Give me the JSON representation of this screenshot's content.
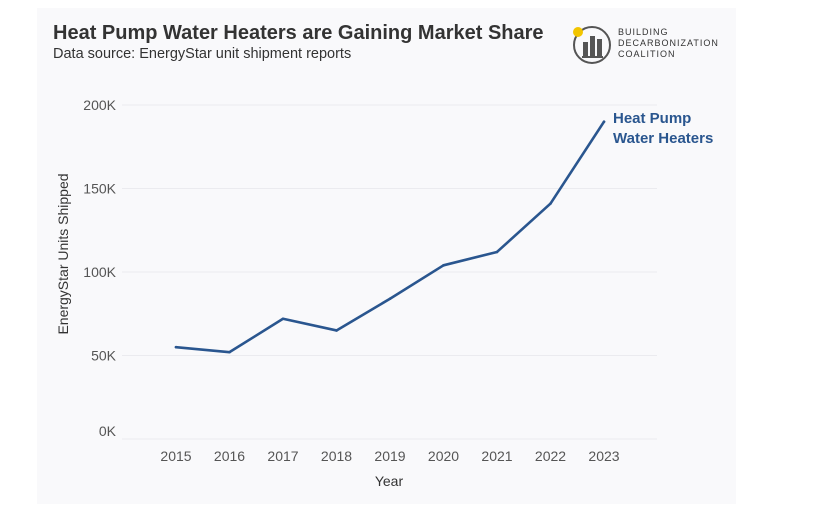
{
  "header": {
    "title": "Heat Pump Water Heaters are Gaining Market Share",
    "subtitle": "Data source: EnergyStar unit shipment reports"
  },
  "logo": {
    "lines": [
      "BUILDING",
      "DECARBONIZATION",
      "COALITION"
    ],
    "icon": "building-coalition-logo-icon",
    "accent_color": "#f2c500"
  },
  "colors": {
    "line": "#2a568f",
    "grid": "#ebebef"
  },
  "chart_data": {
    "type": "line",
    "title": "Heat Pump Water Heaters are Gaining Market Share",
    "subtitle": "Data source: EnergyStar unit shipment reports",
    "xlabel": "Year",
    "ylabel": "EnergyStar Units Shipped",
    "x": [
      2015,
      2016,
      2017,
      2018,
      2019,
      2020,
      2021,
      2022,
      2023
    ],
    "series": [
      {
        "name": "Heat Pump Water Heaters",
        "label_lines": [
          "Heat Pump",
          "Water Heaters"
        ],
        "values": [
          55000,
          52000,
          72000,
          65000,
          84000,
          104000,
          112000,
          141000,
          190000
        ]
      }
    ],
    "y_ticks": [
      0,
      50000,
      100000,
      150000,
      200000
    ],
    "y_tick_labels": [
      "0K",
      "50K",
      "100K",
      "150K",
      "200K"
    ],
    "x_tick_labels": [
      "2015",
      "2016",
      "2017",
      "2018",
      "2019",
      "2020",
      "2021",
      "2022",
      "2023"
    ],
    "ylim": [
      0,
      200000
    ],
    "grid": true,
    "legend": "inline label at end of line"
  }
}
